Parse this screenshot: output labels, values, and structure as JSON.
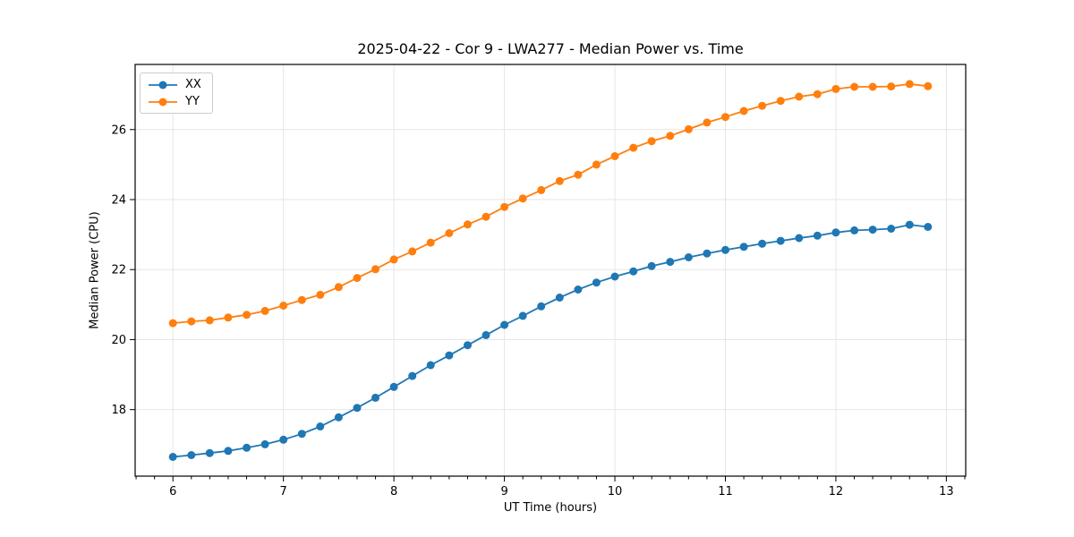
{
  "chart_data": {
    "type": "line",
    "title": "2025-04-22 - Cor 9 - LWA277 - Median Power vs. Time",
    "xlabel": "UT Time (hours)",
    "ylabel": "Median Power (CPU)",
    "xlim": [
      5.658,
      13.175
    ],
    "ylim": [
      16.1,
      27.86
    ],
    "xticks": [
      6,
      7,
      8,
      9,
      10,
      11,
      12,
      13
    ],
    "yticks": [
      18,
      20,
      22,
      24,
      26
    ],
    "minor_xtick_step": 0.1666667,
    "grid": true,
    "legend_position": "upper left",
    "x": [
      6.0,
      6.167,
      6.333,
      6.5,
      6.667,
      6.833,
      7.0,
      7.167,
      7.333,
      7.5,
      7.667,
      7.833,
      8.0,
      8.167,
      8.333,
      8.5,
      8.667,
      8.833,
      9.0,
      9.167,
      9.333,
      9.5,
      9.667,
      9.833,
      10.0,
      10.167,
      10.333,
      10.5,
      10.667,
      10.833,
      11.0,
      11.167,
      11.333,
      11.5,
      11.667,
      11.833,
      12.0,
      12.167,
      12.333,
      12.5,
      12.667,
      12.833
    ],
    "series": [
      {
        "name": "XX",
        "color": "#1f77b4",
        "marker": "o",
        "values": [
          16.65,
          16.7,
          16.76,
          16.82,
          16.91,
          17.01,
          17.14,
          17.31,
          17.52,
          17.78,
          18.05,
          18.34,
          18.65,
          18.96,
          19.27,
          19.55,
          19.84,
          20.13,
          20.42,
          20.68,
          20.95,
          21.2,
          21.43,
          21.63,
          21.8,
          21.95,
          22.1,
          22.22,
          22.35,
          22.46,
          22.56,
          22.65,
          22.74,
          22.82,
          22.9,
          22.97,
          23.06,
          23.12,
          23.14,
          23.17,
          23.28,
          23.22
        ]
      },
      {
        "name": "YY",
        "color": "#ff7f0e",
        "marker": "o",
        "values": [
          20.47,
          20.52,
          20.55,
          20.63,
          20.71,
          20.82,
          20.97,
          21.13,
          21.28,
          21.5,
          21.76,
          22.01,
          22.29,
          22.52,
          22.77,
          23.04,
          23.29,
          23.51,
          23.79,
          24.03,
          24.27,
          24.53,
          24.71,
          25.0,
          25.24,
          25.48,
          25.67,
          25.82,
          26.01,
          26.2,
          26.36,
          26.53,
          26.68,
          26.82,
          26.94,
          27.01,
          27.16,
          27.22,
          27.22,
          27.23,
          27.3,
          27.24
        ]
      }
    ],
    "colors": {
      "grid": "#e6e6e6",
      "spine": "#000000",
      "text": "#000000",
      "background": "#ffffff"
    }
  }
}
